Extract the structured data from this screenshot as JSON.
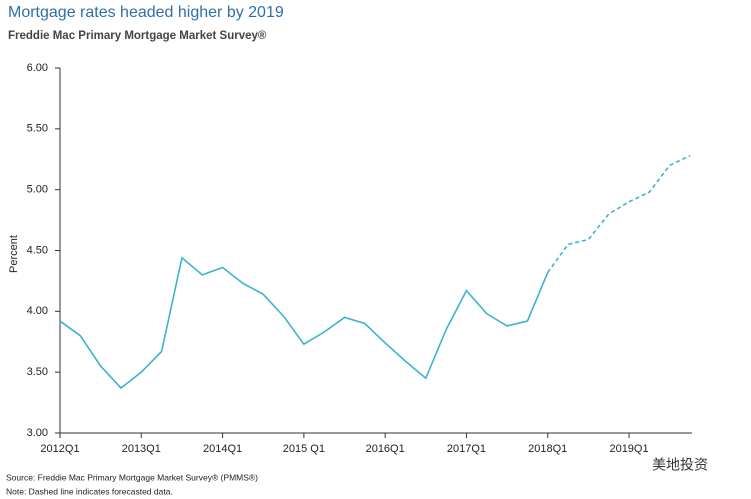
{
  "chart_data": {
    "type": "line",
    "title": "Mortgage rates headed higher by 2019",
    "subtitle": "Freddie Mac Primary Mortgage Market Survey®",
    "y_label": "Percent",
    "source": "Source: Freddie Mac Primary Mortgage Market Survey® (PMMS®)",
    "note": "Note: Dashed line indicates forecasted data.",
    "watermark": "美地投资",
    "categories": [
      "2012Q1",
      null,
      null,
      null,
      "2013Q1",
      null,
      null,
      null,
      "2014Q1",
      null,
      null,
      null,
      "2015 Q1",
      null,
      null,
      null,
      "2016Q1",
      null,
      null,
      null,
      "2017Q1",
      null,
      null,
      null,
      "2018Q1",
      null,
      null,
      null,
      "2019Q1",
      null,
      null,
      null
    ],
    "series": [
      {
        "color": "#3bb3cf",
        "dashed": false,
        "values": [
          3.92,
          3.8,
          3.55,
          3.37,
          3.5,
          3.67,
          4.44,
          4.3,
          4.36,
          4.23,
          4.14,
          3.96,
          3.73,
          3.83,
          3.95,
          3.9,
          3.74,
          3.59,
          3.45,
          3.85,
          4.17,
          3.98,
          3.88,
          3.92,
          4.32,
          null,
          null,
          null,
          null,
          null,
          null,
          null
        ]
      },
      {
        "color": "#3bb3cf",
        "dashed": true,
        "values": [
          null,
          null,
          null,
          null,
          null,
          null,
          null,
          null,
          null,
          null,
          null,
          null,
          null,
          null,
          null,
          null,
          null,
          null,
          null,
          null,
          null,
          null,
          null,
          null,
          4.32,
          4.55,
          4.59,
          4.8,
          4.9,
          4.98,
          5.2,
          5.28
        ]
      }
    ],
    "ylim": [
      3.0,
      6.0
    ],
    "yticks": [
      {
        "value": 3.0,
        "label": "3.00"
      },
      {
        "value": 3.5,
        "label": "3.50"
      },
      {
        "value": 4.0,
        "label": "4.00"
      },
      {
        "value": 4.5,
        "label": "4.50"
      },
      {
        "value": 5.0,
        "label": "5.00"
      },
      {
        "value": 5.5,
        "label": "5.50"
      },
      {
        "value": 6.0,
        "label": "6.00"
      }
    ],
    "grid": false
  }
}
